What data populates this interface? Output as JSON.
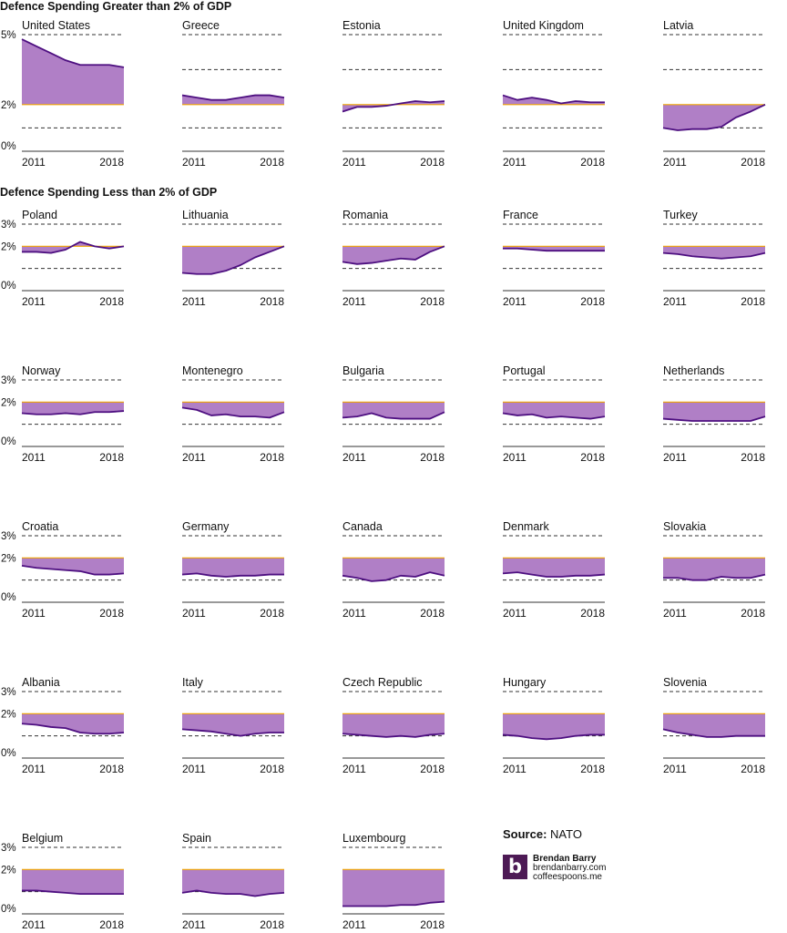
{
  "sections": {
    "greater_title": "Defence Spending Greater than 2% of GDP",
    "less_title": "Defence Spending Less than 2% of GDP"
  },
  "source": {
    "label": "Source:",
    "value": "NATO"
  },
  "brand": {
    "logo_letter": "b",
    "name": "Brendan Barry",
    "site1": "brendanbarry.com",
    "site2": "coffeespoons.me"
  },
  "colors": {
    "fill": "#b07fc6",
    "line": "#4d0f80",
    "target": "#f0a500",
    "grid": "#333333"
  },
  "chart_data": {
    "type": "area",
    "x_tick_labels": [
      "2011",
      "2018"
    ],
    "target_pct": 2,
    "groups": [
      {
        "title": "Defence Spending Greater than 2% of GDP",
        "y_tick_labels": [
          "5%",
          "2%",
          "0%"
        ],
        "ylim": [
          0,
          5
        ],
        "grid": "dashed",
        "countries": [
          {
            "name": "United States",
            "x": [
              2011,
              2012,
              2013,
              2014,
              2015,
              2016,
              2017,
              2018
            ],
            "y": [
              4.8,
              4.5,
              4.2,
              3.9,
              3.7,
              3.7,
              3.7,
              3.6
            ]
          },
          {
            "name": "Greece",
            "x": [
              2011,
              2012,
              2013,
              2014,
              2015,
              2016,
              2017,
              2018
            ],
            "y": [
              2.4,
              2.3,
              2.2,
              2.2,
              2.3,
              2.4,
              2.4,
              2.3
            ]
          },
          {
            "name": "Estonia",
            "x": [
              2011,
              2012,
              2013,
              2014,
              2015,
              2016,
              2017,
              2018
            ],
            "y": [
              1.7,
              1.9,
              1.9,
              1.95,
              2.05,
              2.15,
              2.1,
              2.15
            ]
          },
          {
            "name": "United Kingdom",
            "x": [
              2011,
              2012,
              2013,
              2014,
              2015,
              2016,
              2017,
              2018
            ],
            "y": [
              2.4,
              2.2,
              2.3,
              2.2,
              2.05,
              2.15,
              2.1,
              2.1
            ]
          },
          {
            "name": "Latvia",
            "x": [
              2011,
              2012,
              2013,
              2014,
              2015,
              2016,
              2017,
              2018
            ],
            "y": [
              1.0,
              0.9,
              0.95,
              0.95,
              1.05,
              1.45,
              1.7,
              2.0
            ]
          }
        ]
      },
      {
        "title": "Defence Spending Less than 2% of GDP",
        "y_tick_labels": [
          "3%",
          "2%",
          "0%"
        ],
        "ylim": [
          0,
          3
        ],
        "grid": "dashed",
        "countries": [
          {
            "name": "Poland",
            "x": [
              2011,
              2012,
              2013,
              2014,
              2015,
              2016,
              2017,
              2018
            ],
            "y": [
              1.75,
              1.75,
              1.7,
              1.85,
              2.2,
              2.0,
              1.9,
              2.0
            ]
          },
          {
            "name": "Lithuania",
            "x": [
              2011,
              2012,
              2013,
              2014,
              2015,
              2016,
              2017,
              2018
            ],
            "y": [
              0.8,
              0.75,
              0.75,
              0.9,
              1.15,
              1.5,
              1.75,
              2.0
            ]
          },
          {
            "name": "Romania",
            "x": [
              2011,
              2012,
              2013,
              2014,
              2015,
              2016,
              2017,
              2018
            ],
            "y": [
              1.3,
              1.2,
              1.25,
              1.35,
              1.45,
              1.4,
              1.75,
              2.0
            ]
          },
          {
            "name": "France",
            "x": [
              2011,
              2012,
              2013,
              2014,
              2015,
              2016,
              2017,
              2018
            ],
            "y": [
              1.9,
              1.9,
              1.85,
              1.8,
              1.8,
              1.8,
              1.8,
              1.8
            ]
          },
          {
            "name": "Turkey",
            "x": [
              2011,
              2012,
              2013,
              2014,
              2015,
              2016,
              2017,
              2018
            ],
            "y": [
              1.7,
              1.65,
              1.55,
              1.5,
              1.45,
              1.5,
              1.55,
              1.7
            ]
          },
          {
            "name": "Norway",
            "x": [
              2011,
              2012,
              2013,
              2014,
              2015,
              2016,
              2017,
              2018
            ],
            "y": [
              1.5,
              1.45,
              1.45,
              1.5,
              1.45,
              1.55,
              1.55,
              1.6
            ]
          },
          {
            "name": "Montenegro",
            "x": [
              2011,
              2012,
              2013,
              2014,
              2015,
              2016,
              2017,
              2018
            ],
            "y": [
              1.75,
              1.65,
              1.4,
              1.45,
              1.35,
              1.35,
              1.3,
              1.55
            ]
          },
          {
            "name": "Bulgaria",
            "x": [
              2011,
              2012,
              2013,
              2014,
              2015,
              2016,
              2017,
              2018
            ],
            "y": [
              1.3,
              1.35,
              1.5,
              1.3,
              1.25,
              1.25,
              1.25,
              1.55
            ]
          },
          {
            "name": "Portugal",
            "x": [
              2011,
              2012,
              2013,
              2014,
              2015,
              2016,
              2017,
              2018
            ],
            "y": [
              1.5,
              1.4,
              1.45,
              1.3,
              1.35,
              1.3,
              1.25,
              1.35
            ]
          },
          {
            "name": "Netherlands",
            "x": [
              2011,
              2012,
              2013,
              2014,
              2015,
              2016,
              2017,
              2018
            ],
            "y": [
              1.25,
              1.2,
              1.15,
              1.15,
              1.15,
              1.15,
              1.15,
              1.35
            ]
          },
          {
            "name": "Croatia",
            "x": [
              2011,
              2012,
              2013,
              2014,
              2015,
              2016,
              2017,
              2018
            ],
            "y": [
              1.65,
              1.55,
              1.5,
              1.45,
              1.4,
              1.25,
              1.25,
              1.3
            ]
          },
          {
            "name": "Germany",
            "x": [
              2011,
              2012,
              2013,
              2014,
              2015,
              2016,
              2017,
              2018
            ],
            "y": [
              1.25,
              1.3,
              1.2,
              1.15,
              1.2,
              1.2,
              1.25,
              1.25
            ]
          },
          {
            "name": "Canada",
            "x": [
              2011,
              2012,
              2013,
              2014,
              2015,
              2016,
              2017,
              2018
            ],
            "y": [
              1.2,
              1.1,
              0.95,
              1.0,
              1.2,
              1.15,
              1.35,
              1.2
            ]
          },
          {
            "name": "Denmark",
            "x": [
              2011,
              2012,
              2013,
              2014,
              2015,
              2016,
              2017,
              2018
            ],
            "y": [
              1.3,
              1.35,
              1.25,
              1.15,
              1.15,
              1.2,
              1.2,
              1.25
            ]
          },
          {
            "name": "Slovakia",
            "x": [
              2011,
              2012,
              2013,
              2014,
              2015,
              2016,
              2017,
              2018
            ],
            "y": [
              1.1,
              1.1,
              1.0,
              1.0,
              1.15,
              1.1,
              1.1,
              1.25
            ]
          },
          {
            "name": "Albania",
            "x": [
              2011,
              2012,
              2013,
              2014,
              2015,
              2016,
              2017,
              2018
            ],
            "y": [
              1.55,
              1.5,
              1.4,
              1.35,
              1.15,
              1.1,
              1.1,
              1.15
            ]
          },
          {
            "name": "Italy",
            "x": [
              2011,
              2012,
              2013,
              2014,
              2015,
              2016,
              2017,
              2018
            ],
            "y": [
              1.3,
              1.25,
              1.2,
              1.1,
              1.0,
              1.1,
              1.15,
              1.15
            ]
          },
          {
            "name": "Czech Republic",
            "x": [
              2011,
              2012,
              2013,
              2014,
              2015,
              2016,
              2017,
              2018
            ],
            "y": [
              1.1,
              1.05,
              1.0,
              0.95,
              1.0,
              0.95,
              1.05,
              1.1
            ]
          },
          {
            "name": "Hungary",
            "x": [
              2011,
              2012,
              2013,
              2014,
              2015,
              2016,
              2017,
              2018
            ],
            "y": [
              1.05,
              1.0,
              0.9,
              0.85,
              0.9,
              1.0,
              1.05,
              1.05
            ]
          },
          {
            "name": "Slovenia",
            "x": [
              2011,
              2012,
              2013,
              2014,
              2015,
              2016,
              2017,
              2018
            ],
            "y": [
              1.3,
              1.15,
              1.05,
              0.95,
              0.95,
              1.0,
              1.0,
              1.0
            ]
          },
          {
            "name": "Belgium",
            "x": [
              2011,
              2012,
              2013,
              2014,
              2015,
              2016,
              2017,
              2018
            ],
            "y": [
              1.05,
              1.05,
              1.0,
              0.95,
              0.9,
              0.9,
              0.9,
              0.9
            ]
          },
          {
            "name": "Spain",
            "x": [
              2011,
              2012,
              2013,
              2014,
              2015,
              2016,
              2017,
              2018
            ],
            "y": [
              0.95,
              1.05,
              0.95,
              0.9,
              0.9,
              0.8,
              0.9,
              0.95
            ]
          },
          {
            "name": "Luxembourg",
            "x": [
              2011,
              2012,
              2013,
              2014,
              2015,
              2016,
              2017,
              2018
            ],
            "y": [
              0.35,
              0.35,
              0.35,
              0.35,
              0.4,
              0.4,
              0.5,
              0.55
            ]
          }
        ]
      }
    ]
  }
}
